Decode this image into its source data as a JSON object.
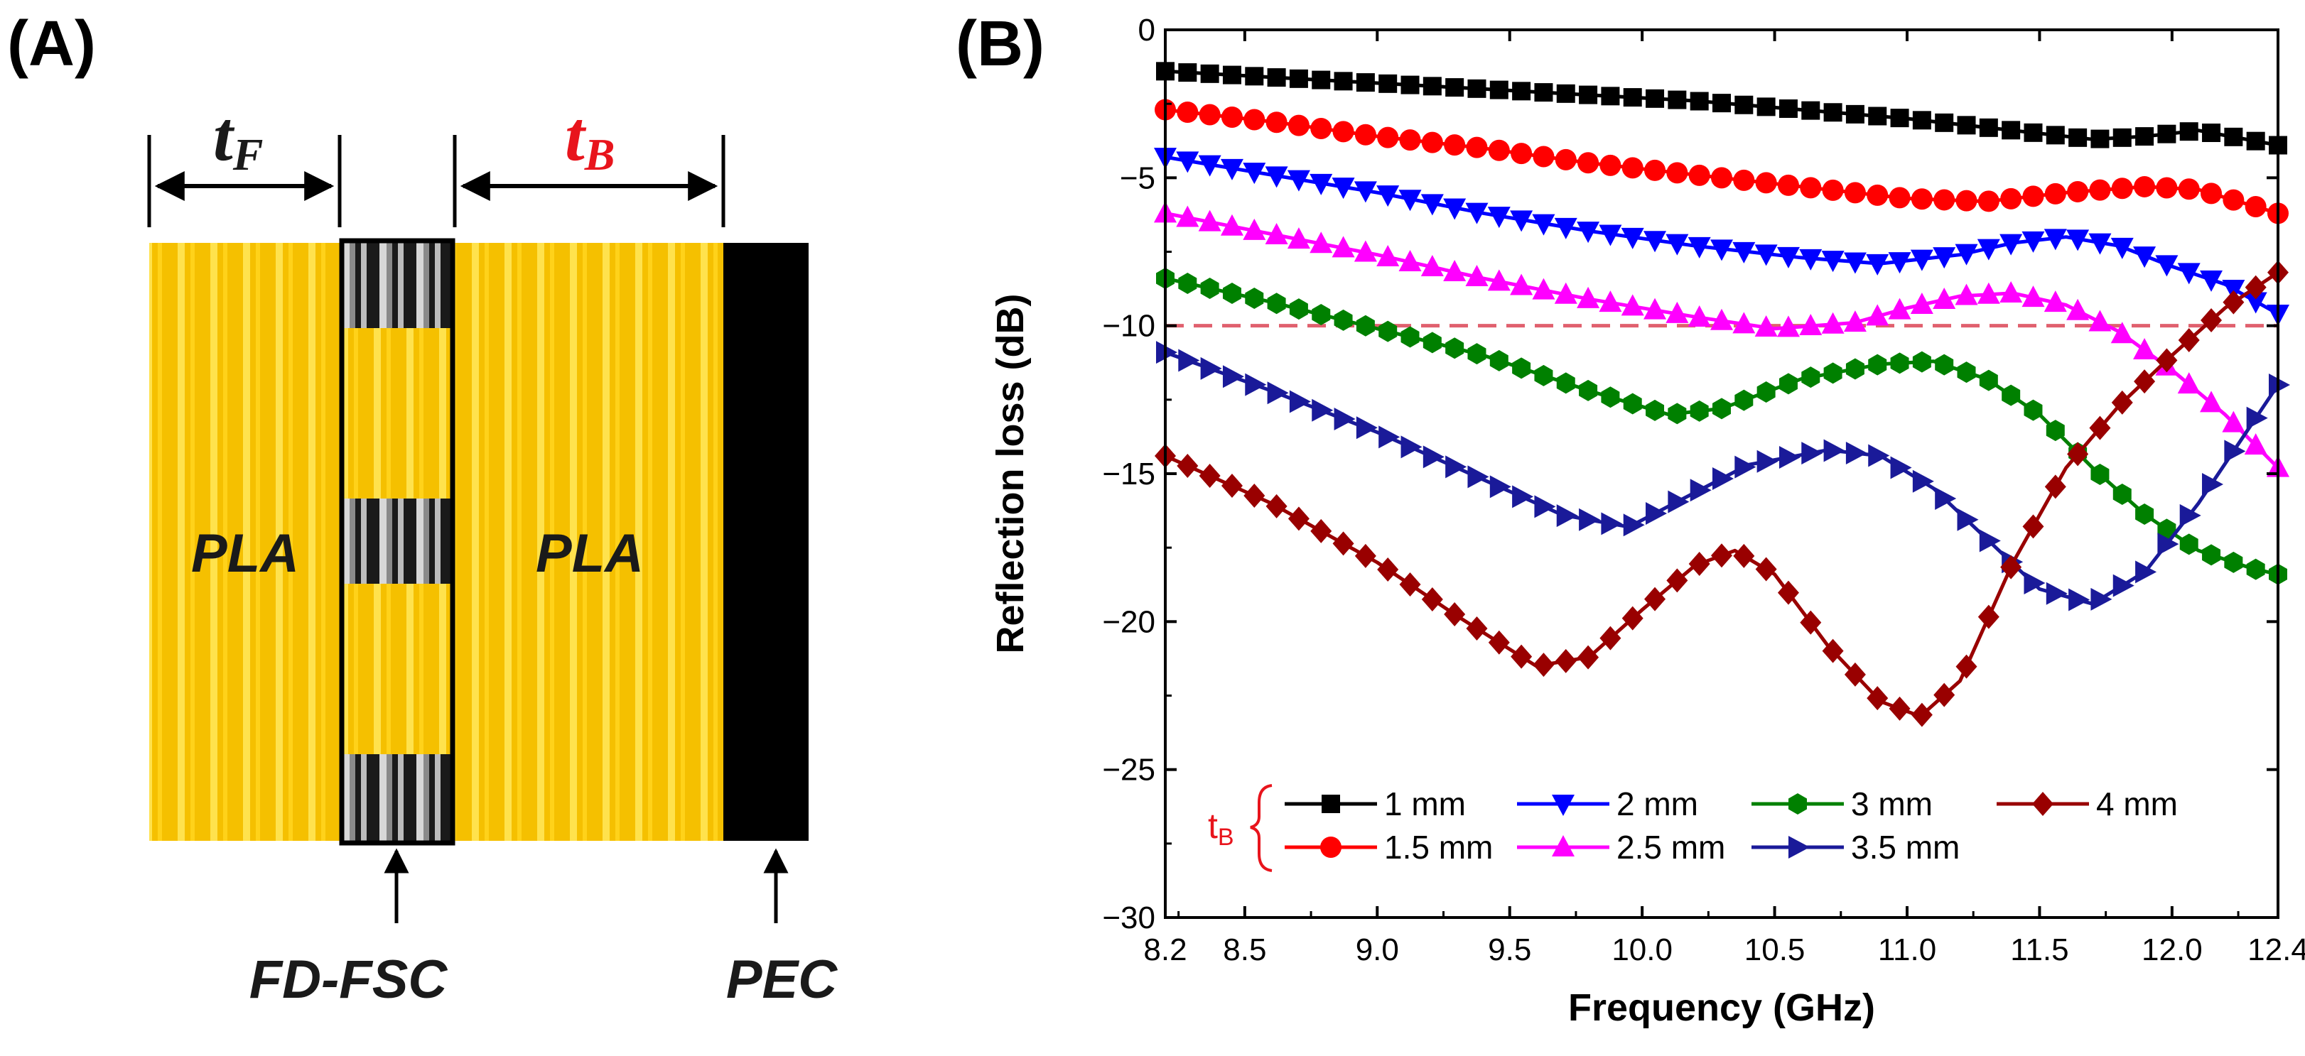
{
  "panel_a": {
    "label": "(A)",
    "dims": {
      "tf_main": "t",
      "tf_sub": "F",
      "tb_main": "t",
      "tb_sub": "B"
    },
    "layers": {
      "front_label": "PLA",
      "back_label": "PLA"
    },
    "callouts": {
      "fsc_label": "FD-FSC",
      "pec_label": "PEC"
    },
    "colors": {
      "pla": "#f7c600",
      "pla_stripe": "#ffe14a",
      "tb_text": "#e8141c",
      "pec": "#000000"
    }
  },
  "panel_b": {
    "label": "(B)"
  },
  "chart_data": {
    "type": "line",
    "title": "",
    "xlabel": "Frequency (GHz)",
    "ylabel": "Reflection loss (dB)",
    "xlim": [
      8.2,
      12.4
    ],
    "ylim": [
      -30,
      0
    ],
    "xticks": [
      8.2,
      8.5,
      9.0,
      9.5,
      10.0,
      10.5,
      11.0,
      11.5,
      12.0,
      12.4
    ],
    "xtick_labels": [
      "8.2",
      "8.5",
      "9.0",
      "9.5",
      "10.0",
      "10.5",
      "11.0",
      "11.5",
      "12.0",
      "12.4"
    ],
    "yticks": [
      0,
      -5,
      -10,
      -15,
      -20,
      -25,
      -30
    ],
    "ytick_labels": [
      "0",
      "−5",
      "−10",
      "−15",
      "−20",
      "−25",
      "−30"
    ],
    "reference_line": {
      "y": -10,
      "style": "dashed",
      "color": "#e0606e"
    },
    "legend": {
      "title": "t",
      "title_sub": "B",
      "title_color": "#e8141c",
      "position": "bottom-left"
    },
    "series": [
      {
        "name": "1 mm",
        "color": "#000000",
        "marker": "square",
        "x": [
          8.2,
          8.6,
          9.0,
          9.4,
          9.8,
          10.2,
          10.6,
          11.0,
          11.4,
          11.7,
          11.9,
          12.1,
          12.4
        ],
        "y": [
          -1.4,
          -1.6,
          -1.8,
          -2.0,
          -2.2,
          -2.4,
          -2.7,
          -3.0,
          -3.4,
          -3.7,
          -3.6,
          -3.4,
          -3.9
        ]
      },
      {
        "name": "1.5 mm",
        "color": "#ff0000",
        "marker": "circle",
        "x": [
          8.2,
          8.6,
          9.0,
          9.4,
          9.8,
          10.2,
          10.6,
          11.0,
          11.3,
          11.6,
          11.9,
          12.1,
          12.4
        ],
        "y": [
          -2.7,
          -3.1,
          -3.6,
          -4.0,
          -4.5,
          -4.9,
          -5.3,
          -5.7,
          -5.8,
          -5.5,
          -5.3,
          -5.4,
          -6.2
        ]
      },
      {
        "name": "2 mm",
        "color": "#0000ff",
        "marker": "triangle-down",
        "x": [
          8.2,
          8.6,
          9.0,
          9.4,
          9.8,
          10.2,
          10.6,
          10.9,
          11.2,
          11.4,
          11.6,
          11.8,
          12.0,
          12.2,
          12.4
        ],
        "y": [
          -4.3,
          -4.9,
          -5.5,
          -6.2,
          -6.8,
          -7.3,
          -7.7,
          -7.9,
          -7.6,
          -7.2,
          -7.0,
          -7.3,
          -8.0,
          -8.6,
          -9.6
        ]
      },
      {
        "name": "2.5 mm",
        "color": "#ff00ff",
        "marker": "triangle-up",
        "x": [
          8.2,
          8.6,
          9.0,
          9.4,
          9.8,
          10.2,
          10.5,
          10.8,
          11.0,
          11.2,
          11.4,
          11.6,
          11.8,
          12.0,
          12.2,
          12.4
        ],
        "y": [
          -6.2,
          -6.9,
          -7.6,
          -8.4,
          -9.1,
          -9.7,
          -10.1,
          -9.9,
          -9.4,
          -9.0,
          -8.9,
          -9.3,
          -10.2,
          -11.5,
          -13.0,
          -14.8
        ]
      },
      {
        "name": "3 mm",
        "color": "#008000",
        "marker": "hexagon",
        "x": [
          8.2,
          8.6,
          9.0,
          9.4,
          9.8,
          10.1,
          10.3,
          10.6,
          10.9,
          11.1,
          11.3,
          11.5,
          11.7,
          11.9,
          12.1,
          12.3,
          12.4
        ],
        "y": [
          -8.4,
          -9.2,
          -10.1,
          -11.0,
          -12.2,
          -13.0,
          -12.8,
          -11.8,
          -11.3,
          -11.2,
          -11.8,
          -13.0,
          -14.8,
          -16.4,
          -17.6,
          -18.2,
          -18.4
        ]
      },
      {
        "name": "3.5 mm",
        "color": "#1a1a99",
        "marker": "triangle-right",
        "x": [
          8.2,
          8.6,
          9.0,
          9.4,
          9.7,
          9.95,
          10.1,
          10.4,
          10.7,
          10.9,
          11.1,
          11.3,
          11.5,
          11.7,
          11.9,
          12.1,
          12.25,
          12.4
        ],
        "y": [
          -10.9,
          -12.2,
          -13.6,
          -15.2,
          -16.4,
          -16.8,
          -16.1,
          -14.7,
          -14.2,
          -14.4,
          -15.5,
          -17.2,
          -18.9,
          -19.4,
          -18.3,
          -16.0,
          -14.0,
          -12.0
        ]
      },
      {
        "name": "4 mm",
        "color": "#990000",
        "marker": "diamond",
        "x": [
          8.2,
          8.6,
          9.0,
          9.3,
          9.6,
          9.8,
          10.0,
          10.2,
          10.35,
          10.5,
          10.7,
          10.9,
          11.05,
          11.2,
          11.4,
          11.6,
          11.8,
          12.0,
          12.2,
          12.4
        ],
        "y": [
          -14.4,
          -16.0,
          -18.0,
          -19.8,
          -21.5,
          -21.2,
          -19.6,
          -18.1,
          -17.6,
          -18.4,
          -20.8,
          -22.7,
          -23.2,
          -22.0,
          -18.0,
          -14.8,
          -12.7,
          -11.0,
          -9.4,
          -8.2
        ]
      }
    ]
  }
}
